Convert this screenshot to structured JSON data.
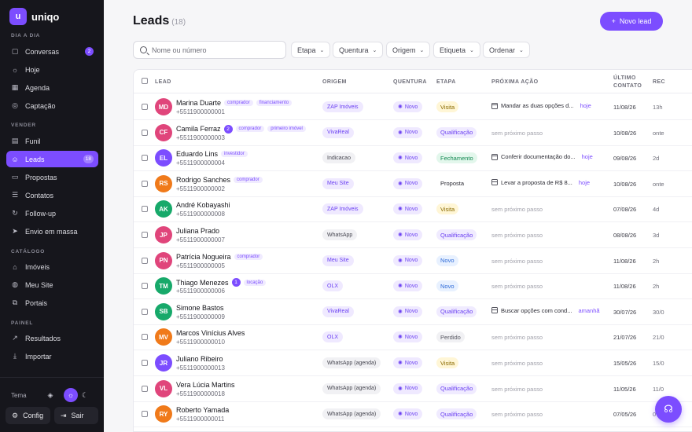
{
  "app": {
    "logo_glyph": "u",
    "name": "uniqo"
  },
  "sidebar": {
    "sections": [
      {
        "label": "DIA A DIA",
        "items": [
          {
            "label": "Conversas",
            "icon": "chat-icon",
            "glyph": "▢",
            "badge": "2"
          },
          {
            "label": "Hoje",
            "icon": "sun-icon",
            "glyph": "☼"
          },
          {
            "label": "Agenda",
            "icon": "calendar-icon",
            "glyph": "▦"
          },
          {
            "label": "Captação",
            "icon": "target-icon",
            "glyph": "◎"
          }
        ]
      },
      {
        "label": "VENDER",
        "items": [
          {
            "label": "Funil",
            "icon": "funnel-icon",
            "glyph": "▤"
          },
          {
            "label": "Leads",
            "icon": "users-icon",
            "glyph": "☺",
            "badge": "18",
            "active": true
          },
          {
            "label": "Propostas",
            "icon": "document-icon",
            "glyph": "▭"
          },
          {
            "label": "Contatos",
            "icon": "contacts-icon",
            "glyph": "☰"
          },
          {
            "label": "Follow-up",
            "icon": "follow-up-icon",
            "glyph": "↻"
          },
          {
            "label": "Envio em massa",
            "icon": "send-icon",
            "glyph": "➤"
          }
        ]
      },
      {
        "label": "CATÁLOGO",
        "items": [
          {
            "label": "Imóveis",
            "icon": "building-icon",
            "glyph": "⌂"
          },
          {
            "label": "Meu Site",
            "icon": "globe-icon",
            "glyph": "◍"
          },
          {
            "label": "Portais",
            "icon": "portal-icon",
            "glyph": "⧉"
          }
        ]
      },
      {
        "label": "PAINEL",
        "items": [
          {
            "label": "Resultados",
            "icon": "chart-icon",
            "glyph": "↗"
          },
          {
            "label": "Importar",
            "icon": "download-icon",
            "glyph": "⤓"
          }
        ]
      }
    ],
    "theme_label": "Tema",
    "config_label": "Config",
    "logout_label": "Sair"
  },
  "header": {
    "title": "Leads",
    "count": "(18)",
    "new_button": "Novo lead"
  },
  "search": {
    "placeholder": "Nome ou número",
    "value": ""
  },
  "filters": [
    "Etapa",
    "Quentura",
    "Origem",
    "Etiqueta",
    "Ordenar"
  ],
  "table": {
    "columns": {
      "lead": "LEAD",
      "origem": "ORIGEM",
      "quentura": "QUENTURA",
      "etapa": "ETAPA",
      "proxima": "PRÓXIMA AÇÃO",
      "ultimo_1": "ÚLTIMO",
      "ultimo_2": "CONTATO",
      "rec": "REC"
    },
    "rows": [
      {
        "initials": "MD",
        "color": "#e0457b",
        "name": "Marina Duarte",
        "count": "",
        "tags": [
          "comprador",
          "financiamento"
        ],
        "phone": "+5511900000001",
        "origin": "ZAP Imóveis",
        "origin_style": "purple",
        "quentura": "Novo",
        "etapa": "Visita",
        "etapa_style": "visita",
        "next": "Mandar as duas opções d...",
        "due": "hoje",
        "date": "11/08/26",
        "rec": "13h"
      },
      {
        "initials": "CF",
        "color": "#e0457b",
        "name": "Camila Ferraz",
        "count": "2",
        "tags": [
          "comprador",
          "primeiro imóvel"
        ],
        "phone": "+5511900000003",
        "origin": "VivaReal",
        "origin_style": "purple",
        "quentura": "Novo",
        "etapa": "Qualificação",
        "etapa_style": "qualif",
        "next": "",
        "due": "",
        "next_empty": "sem próximo passo",
        "date": "10/08/26",
        "rec": "onte"
      },
      {
        "initials": "EL",
        "color": "#7c4dff",
        "name": "Eduardo Lins",
        "count": "",
        "tags": [
          "investidor"
        ],
        "phone": "+5511900000004",
        "origin": "Indicacao",
        "origin_style": "grey",
        "quentura": "Novo",
        "etapa": "Fechamento",
        "etapa_style": "fech",
        "next": "Conferir documentação do...",
        "due": "hoje",
        "date": "09/08/26",
        "rec": "2d"
      },
      {
        "initials": "RS",
        "color": "#f07a1a",
        "name": "Rodrigo Sanches",
        "count": "",
        "tags": [
          "comprador"
        ],
        "phone": "+5511900000002",
        "origin": "Meu Site",
        "origin_style": "purple",
        "quentura": "Novo",
        "etapa": "Proposta",
        "etapa_style": "proposta",
        "next": "Levar a proposta de R$ 8...",
        "due": "hoje",
        "date": "10/08/26",
        "rec": "onte"
      },
      {
        "initials": "AK",
        "color": "#17a96a",
        "name": "André Kobayashi",
        "count": "",
        "tags": [],
        "phone": "+5511900000008",
        "origin": "ZAP Imóveis",
        "origin_style": "purple",
        "quentura": "Novo",
        "etapa": "Visita",
        "etapa_style": "visita",
        "next": "",
        "due": "",
        "next_empty": "sem próximo passo",
        "date": "07/08/26",
        "rec": "4d"
      },
      {
        "initials": "JP",
        "color": "#e0457b",
        "name": "Juliana Prado",
        "count": "",
        "tags": [],
        "phone": "+5511900000007",
        "origin": "WhatsApp",
        "origin_style": "grey",
        "quentura": "Novo",
        "etapa": "Qualificação",
        "etapa_style": "qualif",
        "next": "",
        "due": "",
        "next_empty": "sem próximo passo",
        "date": "08/08/26",
        "rec": "3d"
      },
      {
        "initials": "PN",
        "color": "#e0457b",
        "name": "Patrícia Nogueira",
        "count": "",
        "tags": [
          "comprador"
        ],
        "phone": "+5511900000005",
        "origin": "Meu Site",
        "origin_style": "purple",
        "quentura": "Novo",
        "etapa": "Novo",
        "etapa_style": "novo",
        "next": "",
        "due": "",
        "next_empty": "sem próximo passo",
        "date": "11/08/26",
        "rec": "2h"
      },
      {
        "initials": "TM",
        "color": "#17a96a",
        "name": "Thiago Menezes",
        "count": "1",
        "tags": [
          "locação"
        ],
        "phone": "+5511900000006",
        "origin": "OLX",
        "origin_style": "purple",
        "quentura": "Novo",
        "etapa": "Novo",
        "etapa_style": "novo",
        "next": "",
        "due": "",
        "next_empty": "sem próximo passo",
        "date": "11/08/26",
        "rec": "2h"
      },
      {
        "initials": "SB",
        "color": "#17a96a",
        "name": "Simone Bastos",
        "count": "",
        "tags": [],
        "phone": "+5511900000009",
        "origin": "VivaReal",
        "origin_style": "purple",
        "quentura": "Novo",
        "etapa": "Qualificação",
        "etapa_style": "qualif",
        "next": "Buscar opções com cond...",
        "due": "amanhã",
        "date": "30/07/26",
        "rec": "30/0"
      },
      {
        "initials": "MV",
        "color": "#f07a1a",
        "name": "Marcos Vinícius Alves",
        "count": "",
        "tags": [],
        "phone": "+5511900000010",
        "origin": "OLX",
        "origin_style": "purple",
        "quentura": "Novo",
        "etapa": "Perdido",
        "etapa_style": "perdido",
        "next": "",
        "due": "",
        "next_empty": "sem próximo passo",
        "date": "21/07/26",
        "rec": "21/0"
      },
      {
        "initials": "JR",
        "color": "#7c4dff",
        "name": "Juliano Ribeiro",
        "count": "",
        "tags": [],
        "phone": "+5511900000013",
        "origin": "WhatsApp (agenda)",
        "origin_style": "grey",
        "quentura": "Novo",
        "etapa": "Visita",
        "etapa_style": "visita",
        "next": "",
        "due": "",
        "next_empty": "sem próximo passo",
        "date": "15/05/26",
        "rec": "15/0"
      },
      {
        "initials": "VL",
        "color": "#e0457b",
        "name": "Vera Lúcia Martins",
        "count": "",
        "tags": [],
        "phone": "+5511900000018",
        "origin": "WhatsApp (agenda)",
        "origin_style": "grey",
        "quentura": "Novo",
        "etapa": "Qualificação",
        "etapa_style": "qualif",
        "next": "",
        "due": "",
        "next_empty": "sem próximo passo",
        "date": "11/05/26",
        "rec": "11/0"
      },
      {
        "initials": "RY",
        "color": "#f07a1a",
        "name": "Roberto Yamada",
        "count": "",
        "tags": [],
        "phone": "+5511900000011",
        "origin": "WhatsApp (agenda)",
        "origin_style": "grey",
        "quentura": "Novo",
        "etapa": "Qualificação",
        "etapa_style": "qualif",
        "next": "",
        "due": "",
        "next_empty": "sem próximo passo",
        "date": "07/05/26",
        "rec": "07/0"
      }
    ]
  },
  "colors": {
    "accent": "#7c4dff",
    "sidebar_bg": "#16161c"
  }
}
